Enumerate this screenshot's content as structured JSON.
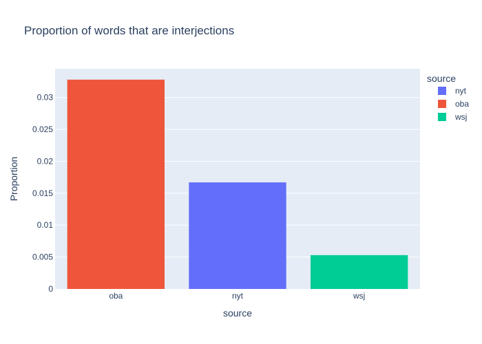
{
  "chart_data": {
    "type": "bar",
    "title": "Proportion of words that are interjections",
    "xlabel": "source",
    "ylabel": "Proportion",
    "categories": [
      "oba",
      "nyt",
      "wsj"
    ],
    "series": [
      {
        "name": "nyt",
        "color": "#636efa",
        "x": "nyt",
        "value": 0.0167
      },
      {
        "name": "oba",
        "color": "#ef553b",
        "x": "oba",
        "value": 0.0328
      },
      {
        "name": "wsj",
        "color": "#00cc96",
        "x": "wsj",
        "value": 0.0053
      }
    ],
    "ylim": [
      0,
      0.0345
    ],
    "yticks": [
      0,
      0.005,
      0.01,
      0.015,
      0.02,
      0.025,
      0.03
    ],
    "ytick_labels": [
      "0",
      "0.005",
      "0.01",
      "0.015",
      "0.02",
      "0.025",
      "0.03"
    ],
    "grid": true,
    "legend": {
      "title": "source",
      "position": "right",
      "entries": [
        "nyt",
        "oba",
        "wsj"
      ]
    },
    "plot_bg_color": "#e5ecf6",
    "grid_color": "#ffffff"
  }
}
